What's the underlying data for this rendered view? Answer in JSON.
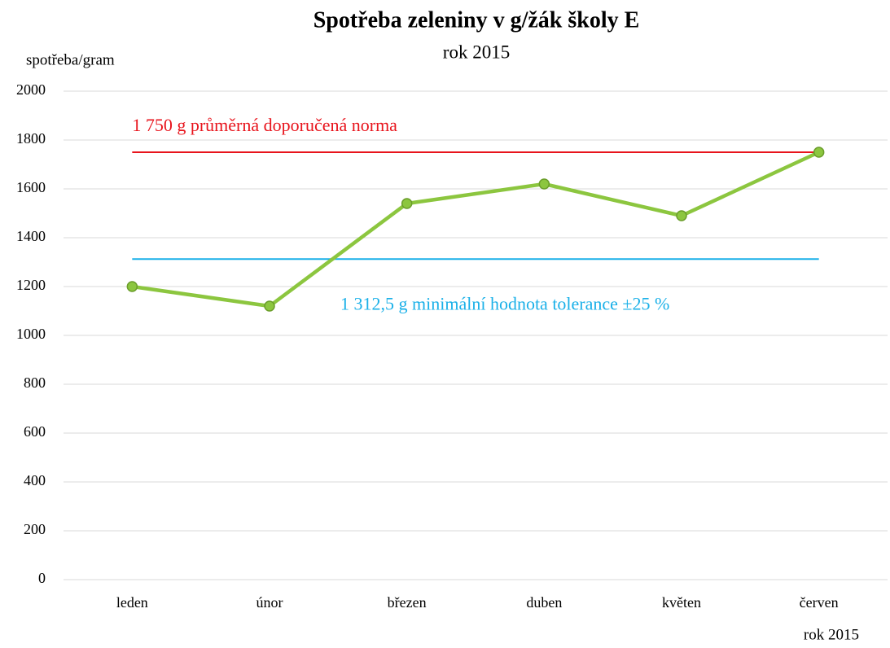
{
  "chart_data": {
    "type": "line",
    "title": "Spotřeba zeleniny v g/žák školy E",
    "subtitle": "rok 2015",
    "y_label": "spotřeba/gram",
    "x_label": "rok 2015",
    "categories": [
      "leden",
      "únor",
      "březen",
      "duben",
      "květen",
      "červen"
    ],
    "series": [
      {
        "name": "spotřeba",
        "color": "#8cc63f",
        "values": [
          1200,
          1120,
          1540,
          1620,
          1490,
          1750
        ]
      }
    ],
    "reference_lines": [
      {
        "value": 1750,
        "label": "1 750 g průměrná doporučená norma",
        "color": "#e8141c"
      },
      {
        "value": 1312.5,
        "label": "1 312,5 g minimální hodnota tolerance ±25 %",
        "color": "#1ab0e8"
      }
    ],
    "ylim": [
      0,
      2000
    ],
    "yticks": [
      0,
      200,
      400,
      600,
      800,
      1000,
      1200,
      1400,
      1600,
      1800,
      2000
    ],
    "grid": true
  }
}
